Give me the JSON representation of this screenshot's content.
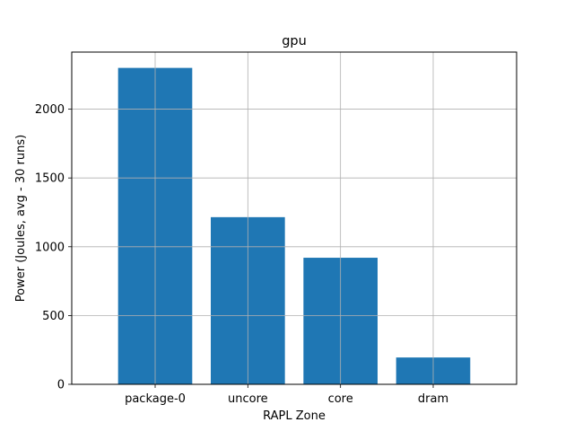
{
  "chart_data": {
    "type": "bar",
    "title": "gpu",
    "xlabel": "RAPL Zone",
    "ylabel": "Power (Joules, avg - 30 runs)",
    "categories": [
      "package-0",
      "uncore",
      "core",
      "dram"
    ],
    "values": [
      2300,
      1215,
      920,
      195
    ],
    "ylim": [
      0,
      2415
    ],
    "yticks": [
      0,
      500,
      1000,
      1500,
      2000
    ],
    "grid": true,
    "bar_color": "#1f77b4",
    "grid_color": "#b0b0b0"
  }
}
